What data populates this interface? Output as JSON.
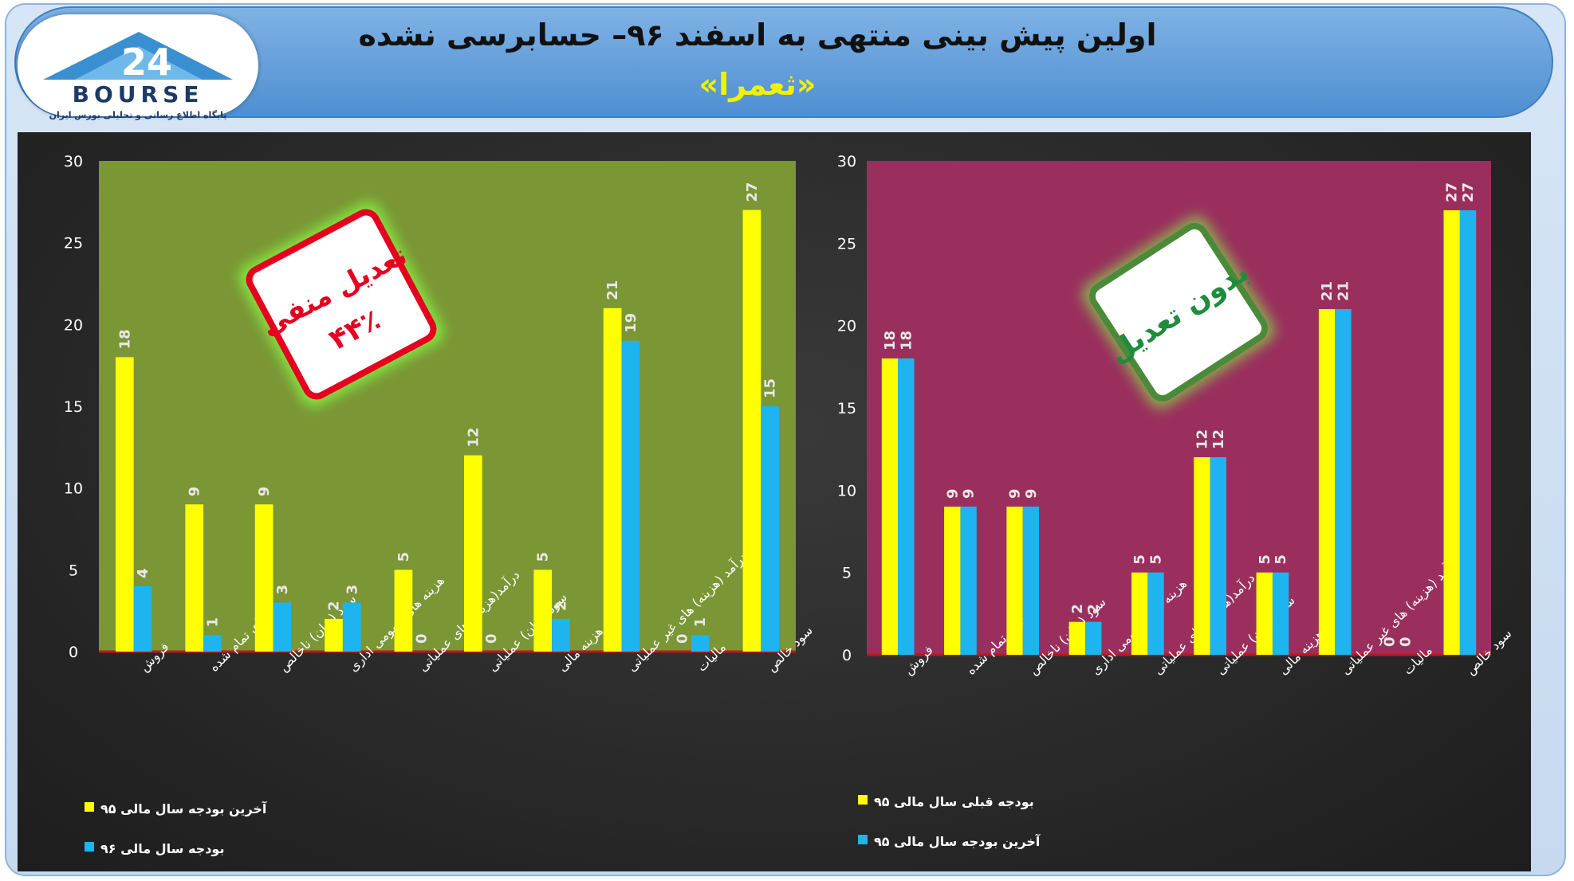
{
  "header": {
    "title_line1": "اولین پیش بینی منتهی به اسفند ۹۶– حسابرسی نشده",
    "title_line2": "«ثعمرا»",
    "logo_word": "BOURSE",
    "logo_tagline": "پایگاه اطلاع رسانی و تحلیلی بورس ایران"
  },
  "colors": {
    "yellow_series": "#ffff00",
    "blue_series": "#1eb4f0",
    "left_plot_bg": "#7a9635",
    "right_plot_bg": "#9a2f5e",
    "badge_left": "#e5001f",
    "badge_right_text": "#1e8c3c"
  },
  "chart_data": [
    {
      "type": "bar",
      "side": "left",
      "categories": [
        "فروش",
        "بهای تمام شده",
        "سود (زیان) ناخالص",
        "هزینه های عمومی اداری",
        "درآمد(هزینه) های عملیاتی",
        "سود (زیان) عملیاتی",
        "هزینه مالی",
        "درآمد (هزینه) های غیر عملیاتی",
        "مالیات",
        "سود خالص"
      ],
      "series": [
        {
          "name": "آخرین بودجه سال مالی ۹۵",
          "color": "#ffff00",
          "values": [
            18,
            9,
            9,
            2,
            5,
            12,
            5,
            21,
            0,
            27
          ]
        },
        {
          "name": "بودجه سال مالی ۹۶",
          "color": "#1eb4f0",
          "values": [
            4,
            1,
            3,
            3,
            0,
            0,
            2,
            19,
            1,
            15
          ]
        }
      ],
      "ylim": [
        0,
        30
      ],
      "yticks": [
        0,
        5,
        10,
        15,
        20,
        25,
        30
      ],
      "badge": {
        "line1": "تعدیل منفی",
        "line2": "۴۴٪"
      },
      "legend_position": "bottom-left"
    },
    {
      "type": "bar",
      "side": "right",
      "categories": [
        "فروش",
        "بهای تمام شده",
        "سود (زیان) ناخالص",
        "هزینه های عمومی اداری",
        "درآمد(هزینه) های عملیاتی",
        "سود (زیان) عملیاتی",
        "هزینه مالی",
        "درآمد (هزینه) های غیر عملیاتی",
        "مالیات",
        "سود خالص"
      ],
      "series": [
        {
          "name": "بودجه قبلی سال مالی ۹۵",
          "color": "#ffff00",
          "values": [
            18,
            9,
            9,
            2,
            5,
            12,
            5,
            21,
            0,
            27
          ]
        },
        {
          "name": "آخرین بودجه سال مالی ۹۵",
          "color": "#1eb4f0",
          "values": [
            18,
            9,
            9,
            2,
            5,
            12,
            5,
            21,
            0,
            27
          ]
        }
      ],
      "ylim": [
        0,
        30
      ],
      "yticks": [
        0,
        5,
        10,
        15,
        20,
        25,
        30
      ],
      "badge": {
        "line1": "بدون تعدیل",
        "line2": ""
      },
      "legend_position": "bottom-left"
    }
  ]
}
